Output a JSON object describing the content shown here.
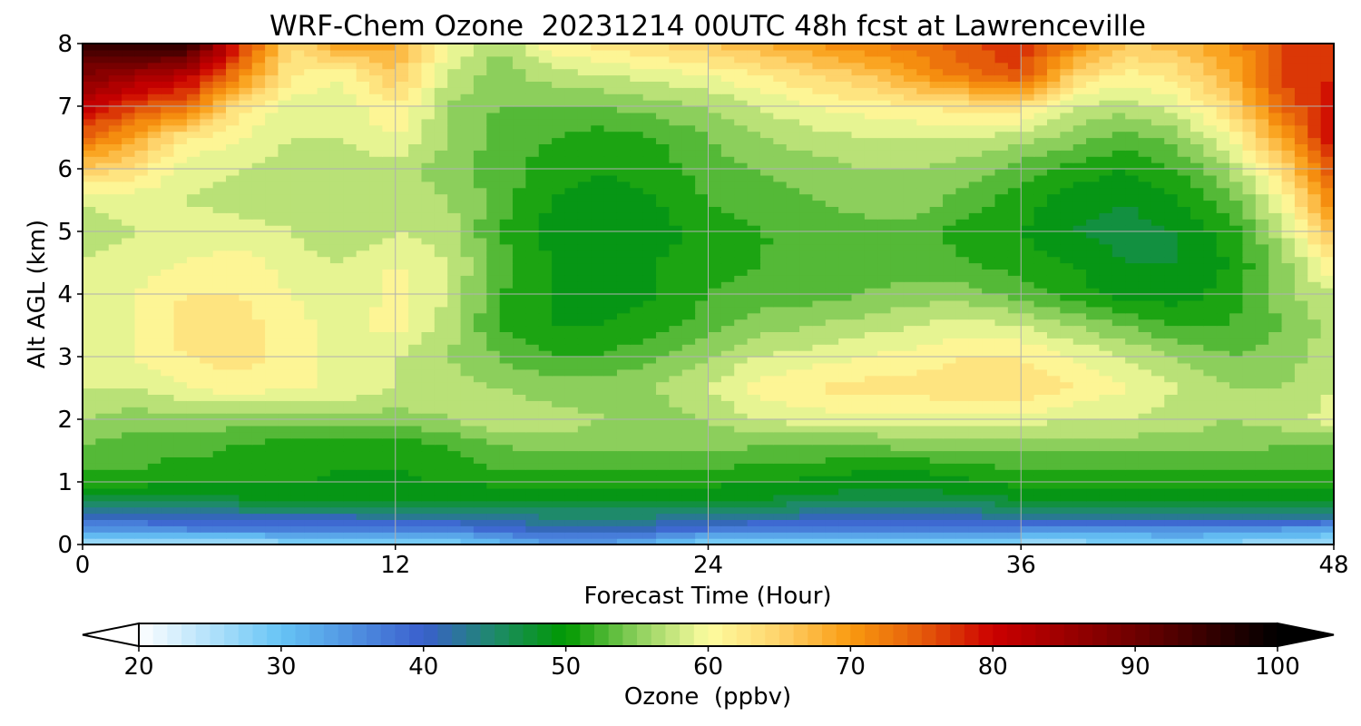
{
  "chart_data": {
    "type": "heatmap",
    "title": "WRF-Chem Ozone  20231214 00UTC 48h fcst at Lawrenceville",
    "xlabel": "Forecast Time (Hour)",
    "ylabel": "Alt AGL (km)",
    "xlim": [
      0,
      48
    ],
    "ylim": [
      0,
      8
    ],
    "x_ticks": [
      "0",
      "12",
      "24",
      "36",
      "48"
    ],
    "y_ticks": [
      "0",
      "1",
      "2",
      "3",
      "4",
      "5",
      "6",
      "7",
      "8"
    ],
    "grid": true,
    "colorbar": {
      "label": "Ozone  (ppbv)",
      "min": 20,
      "max": 100,
      "extend": "both",
      "ticks": [
        "20",
        "30",
        "40",
        "50",
        "60",
        "70",
        "80",
        "90",
        "100"
      ],
      "stops": [
        {
          "value": 20,
          "color": "#ffffff"
        },
        {
          "value": 30,
          "color": "#66c4f5"
        },
        {
          "value": 40,
          "color": "#3a5fcd"
        },
        {
          "value": 45,
          "color": "#1e8a6a"
        },
        {
          "value": 50,
          "color": "#009900"
        },
        {
          "value": 55,
          "color": "#8ccf5c"
        },
        {
          "value": 60,
          "color": "#fdfda0"
        },
        {
          "value": 65,
          "color": "#fed36b"
        },
        {
          "value": 70,
          "color": "#f99a10"
        },
        {
          "value": 75,
          "color": "#e55b0a"
        },
        {
          "value": 80,
          "color": "#cc0000"
        },
        {
          "value": 90,
          "color": "#6e0000"
        },
        {
          "value": 100,
          "color": "#000000"
        }
      ]
    },
    "x_hours": [
      0,
      2,
      4,
      6,
      8,
      10,
      12,
      14,
      16,
      18,
      20,
      22,
      24,
      26,
      28,
      30,
      32,
      34,
      36,
      38,
      40,
      42,
      44,
      46,
      48
    ],
    "y_km": [
      0,
      0.25,
      0.5,
      0.8,
      1.2,
      1.6,
      2,
      2.5,
      3,
      3.5,
      4,
      4.5,
      5,
      5.5,
      6,
      6.5,
      7,
      7.5,
      8
    ],
    "ozone_ppbv": [
      [
        24,
        24,
        25,
        25,
        26,
        26,
        26,
        27,
        30,
        33,
        33,
        30,
        27,
        26,
        26,
        27,
        26,
        26,
        26,
        26,
        27,
        28,
        27,
        25,
        25
      ],
      [
        35,
        35,
        36,
        36,
        37,
        37,
        37,
        37,
        39,
        41,
        41,
        40,
        38,
        37,
        37,
        38,
        37,
        37,
        36,
        35,
        35,
        35,
        35,
        34,
        33
      ],
      [
        42,
        42,
        42,
        43,
        43,
        43,
        44,
        44,
        44,
        45,
        45,
        45,
        44,
        44,
        43,
        42,
        42,
        43,
        44,
        45,
        45,
        45,
        45,
        45,
        45
      ],
      [
        49,
        49,
        49,
        49,
        49,
        49,
        49,
        49,
        49,
        49,
        49,
        49,
        49,
        49,
        48,
        47,
        47,
        48,
        49,
        49,
        49,
        49,
        49,
        49,
        49
      ],
      [
        52,
        52,
        51,
        51,
        51,
        50,
        50,
        51,
        52,
        52,
        52,
        52,
        52,
        51,
        51,
        50,
        50,
        51,
        52,
        52,
        52,
        52,
        52,
        52,
        52
      ],
      [
        54,
        53,
        53,
        52,
        51,
        51,
        51,
        52,
        54,
        55,
        55,
        55,
        55,
        54,
        54,
        54,
        55,
        55,
        55,
        55,
        55,
        55,
        55,
        54,
        54
      ],
      [
        56,
        55,
        55,
        55,
        55,
        55,
        55,
        56,
        58,
        57,
        56,
        55,
        56,
        58,
        59,
        59,
        59,
        59,
        59,
        58,
        58,
        57,
        56,
        57,
        59
      ],
      [
        58,
        58,
        60,
        61,
        60,
        60,
        58,
        57,
        56,
        55,
        55,
        56,
        58,
        61,
        62,
        63,
        63,
        64,
        64,
        62,
        60,
        58,
        56,
        56,
        58
      ],
      [
        59,
        60,
        62,
        63,
        61,
        59,
        58,
        56,
        54,
        52,
        52,
        54,
        56,
        58,
        59,
        60,
        61,
        62,
        62,
        60,
        58,
        56,
        54,
        55,
        57
      ],
      [
        59,
        60,
        63,
        63,
        61,
        59,
        61,
        57,
        52,
        50,
        50,
        51,
        53,
        55,
        56,
        57,
        58,
        59,
        58,
        56,
        54,
        52,
        52,
        54,
        57
      ],
      [
        58,
        60,
        62,
        62,
        60,
        58,
        61,
        58,
        52,
        50,
        49,
        50,
        52,
        53,
        53,
        54,
        55,
        55,
        53,
        51,
        49,
        49,
        51,
        55,
        58
      ],
      [
        58,
        59,
        60,
        61,
        59,
        58,
        60,
        58,
        53,
        50,
        49,
        50,
        51,
        52,
        52,
        53,
        53,
        52,
        51,
        50,
        48,
        48,
        50,
        55,
        62
      ],
      [
        57,
        58,
        59,
        59,
        58,
        56,
        58,
        57,
        52,
        49,
        48,
        49,
        51,
        52,
        52,
        53,
        53,
        51,
        50,
        48,
        47,
        48,
        51,
        57,
        67
      ],
      [
        58,
        59,
        58,
        57,
        57,
        56,
        57,
        56,
        53,
        50,
        49,
        50,
        52,
        53,
        54,
        55,
        55,
        53,
        51,
        49,
        48,
        50,
        53,
        60,
        72
      ],
      [
        66,
        63,
        59,
        58,
        57,
        57,
        57,
        55,
        53,
        51,
        50,
        51,
        53,
        54,
        55,
        56,
        56,
        55,
        53,
        51,
        50,
        52,
        56,
        64,
        76
      ],
      [
        74,
        69,
        62,
        60,
        58,
        58,
        60,
        56,
        53,
        52,
        51,
        52,
        54,
        56,
        57,
        58,
        58,
        58,
        57,
        55,
        53,
        55,
        60,
        69,
        80
      ],
      [
        82,
        76,
        73,
        63,
        59,
        59,
        62,
        56,
        54,
        54,
        54,
        55,
        56,
        58,
        60,
        61,
        62,
        63,
        63,
        58,
        57,
        59,
        64,
        74,
        79
      ],
      [
        88,
        85,
        82,
        72,
        62,
        60,
        66,
        58,
        55,
        57,
        58,
        59,
        60,
        62,
        64,
        66,
        70,
        73,
        76,
        65,
        61,
        63,
        68,
        77,
        78
      ],
      [
        95,
        97,
        96,
        78,
        64,
        70,
        69,
        60,
        56,
        61,
        63,
        64,
        66,
        68,
        70,
        72,
        73,
        76,
        78,
        72,
        66,
        67,
        70,
        76,
        77
      ]
    ]
  }
}
